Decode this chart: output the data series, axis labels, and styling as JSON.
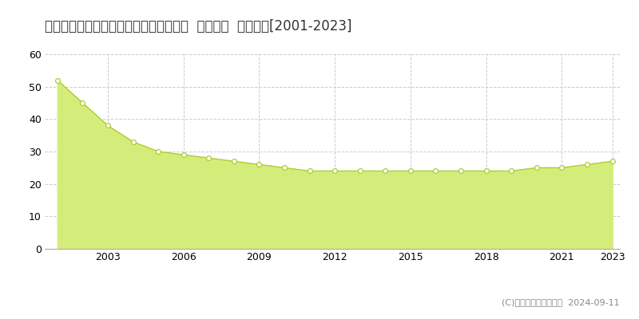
{
  "title": "兵庫県神戸市西区大津和３丁目４番７外  地価公示  地価推移[2001-2023]",
  "years": [
    2001,
    2002,
    2003,
    2004,
    2005,
    2006,
    2007,
    2008,
    2009,
    2010,
    2011,
    2012,
    2013,
    2014,
    2015,
    2016,
    2017,
    2018,
    2019,
    2020,
    2021,
    2022,
    2023
  ],
  "values": [
    52,
    45,
    38,
    33,
    30,
    29,
    28,
    27,
    26,
    25,
    24,
    24,
    24,
    24,
    24,
    24,
    24,
    24,
    24,
    25,
    25,
    26,
    27
  ],
  "fill_color": "#d4ed7a",
  "line_color": "#b0cc30",
  "marker_facecolor": "#ffffff",
  "marker_edgecolor": "#b0cc30",
  "background_color": "#ffffff",
  "plot_bg_color": "#ffffff",
  "grid_color": "#cccccc",
  "ylim": [
    0,
    60
  ],
  "yticks": [
    0,
    10,
    20,
    30,
    40,
    50,
    60
  ],
  "x_tick_years": [
    2003,
    2006,
    2009,
    2012,
    2015,
    2018,
    2021,
    2023
  ],
  "legend_color": "#c8e850",
  "copyright_text": "(C)土地価格ドットコム  2024-09-11",
  "title_fontsize": 12,
  "axis_fontsize": 9,
  "legend_fontsize": 9,
  "copyright_fontsize": 8
}
